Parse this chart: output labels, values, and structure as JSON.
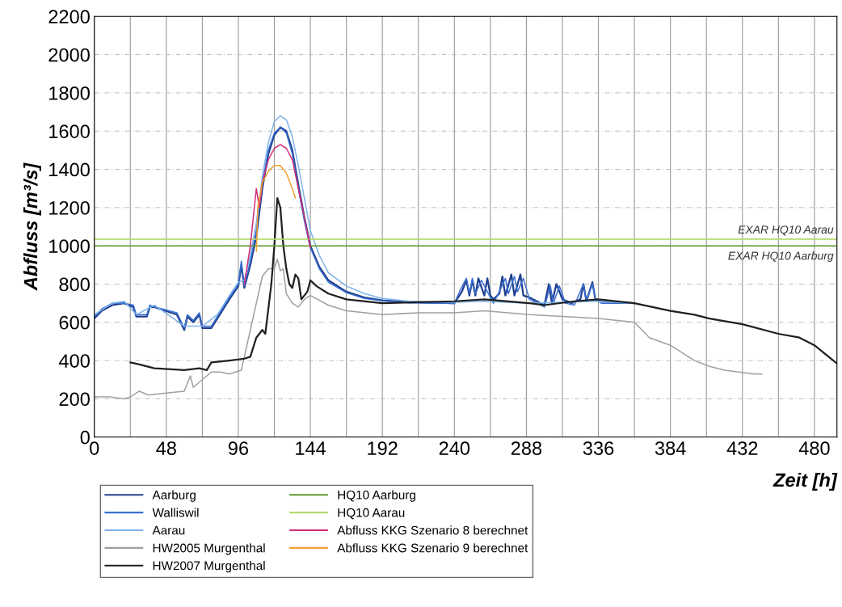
{
  "chart_data": {
    "type": "line",
    "xlabel": "Zeit [h]",
    "ylabel": "Abfluss [m³/s]",
    "xlim": [
      0,
      495
    ],
    "ylim": [
      0,
      2200
    ],
    "xticks": [
      0,
      {
        "value": 24,
        "label": null
      },
      48,
      {
        "value": 72,
        "label": null
      },
      96,
      {
        "value": 120,
        "label": null
      },
      144,
      {
        "value": 168,
        "label": null
      },
      192,
      {
        "value": 216,
        "label": null
      },
      240,
      {
        "value": 264,
        "label": null
      },
      288,
      {
        "value": 312,
        "label": null
      },
      336,
      {
        "value": 360,
        "label": null
      },
      384,
      {
        "value": 408,
        "label": null
      },
      432,
      {
        "value": 456,
        "label": null
      },
      480
    ],
    "yticks": [
      0,
      200,
      400,
      600,
      800,
      1000,
      1200,
      1400,
      1600,
      1800,
      2000,
      2200
    ],
    "grid": true,
    "legend": "bottom left",
    "marker": "none",
    "line_style": "solid",
    "annotations": [
      {
        "text": "EXAR HQ10 Aarau",
        "x": 495,
        "y": 1035
      },
      {
        "text": "EXAR HQ10 Aarburg",
        "x": 495,
        "y": 1000
      }
    ],
    "series": [
      {
        "name": "Aarburg",
        "color": "#1f3f8f",
        "x": [
          0,
          5,
          12,
          20,
          26,
          28,
          35,
          37,
          40,
          55,
          60,
          62,
          66,
          70,
          72,
          78,
          82,
          90,
          96,
          98,
          100,
          104,
          108,
          112,
          116,
          120,
          124,
          128,
          132,
          136,
          140,
          144,
          150,
          156,
          168,
          180,
          192,
          210,
          240,
          245,
          248,
          250,
          252,
          254,
          256,
          260,
          262,
          264,
          266,
          270,
          272,
          274,
          278,
          280,
          284,
          286,
          290,
          300,
          303,
          305,
          308,
          312,
          318,
          324,
          326,
          328,
          332,
          334,
          340,
          360
        ],
        "values": [
          620,
          660,
          690,
          700,
          680,
          630,
          630,
          680,
          680,
          640,
          560,
          630,
          600,
          640,
          570,
          570,
          620,
          720,
          790,
          900,
          780,
          900,
          1050,
          1300,
          1480,
          1580,
          1620,
          1600,
          1500,
          1320,
          1150,
          1000,
          890,
          820,
          760,
          730,
          715,
          705,
          700,
          760,
          820,
          740,
          820,
          740,
          830,
          740,
          830,
          740,
          720,
          750,
          840,
          740,
          850,
          740,
          850,
          740,
          730,
          690,
          800,
          700,
          800,
          720,
          700,
          720,
          800,
          710,
          810,
          720,
          710,
          700
        ]
      },
      {
        "name": "Walliswil",
        "color": "#3a6fd0",
        "x": [
          0,
          5,
          12,
          20,
          26,
          28,
          35,
          37,
          40,
          55,
          60,
          62,
          66,
          70,
          72,
          78,
          82,
          90,
          96,
          98,
          100,
          104,
          108,
          112,
          116,
          120,
          124,
          128,
          132,
          136,
          140,
          144,
          150,
          156,
          168,
          180,
          192,
          210,
          240,
          244,
          248,
          250,
          252,
          254,
          258,
          262,
          266,
          270,
          274,
          276,
          280,
          282,
          286,
          290,
          300,
          304,
          306,
          310,
          314,
          320,
          326,
          328,
          332,
          334,
          338,
          360
        ],
        "values": [
          630,
          670,
          700,
          700,
          690,
          640,
          640,
          690,
          680,
          650,
          570,
          640,
          610,
          650,
          580,
          580,
          630,
          730,
          800,
          920,
          790,
          920,
          1080,
          1330,
          1500,
          1590,
          1620,
          1590,
          1480,
          1300,
          1130,
          990,
          880,
          810,
          755,
          725,
          712,
          702,
          698,
          770,
          830,
          750,
          830,
          750,
          820,
          760,
          700,
          760,
          830,
          750,
          840,
          760,
          830,
          720,
          680,
          790,
          700,
          790,
          700,
          690,
          800,
          710,
          800,
          720,
          700,
          700
        ]
      },
      {
        "name": "Aarau",
        "color": "#7fb3e8",
        "x": [
          0,
          12,
          20,
          28,
          40,
          60,
          72,
          82,
          90,
          96,
          100,
          104,
          108,
          112,
          116,
          120,
          124,
          128,
          132,
          136,
          140,
          144,
          150,
          156,
          168,
          180,
          192,
          210,
          240,
          260,
          290,
          336,
          360
        ],
        "values": [
          640,
          700,
          710,
          640,
          690,
          580,
          580,
          640,
          740,
          810,
          820,
          950,
          1120,
          1360,
          1540,
          1650,
          1680,
          1660,
          1570,
          1420,
          1250,
          1080,
          950,
          860,
          790,
          750,
          725,
          710,
          705,
          710,
          700,
          710,
          700
        ]
      },
      {
        "name": "HW2005 Murgenthal",
        "color": "#a0a0a0",
        "x": [
          0,
          10,
          20,
          24,
          30,
          36,
          48,
          60,
          64,
          66,
          72,
          78,
          84,
          90,
          98,
          104,
          108,
          112,
          116,
          120,
          122,
          124,
          126,
          128,
          132,
          136,
          140,
          144,
          156,
          168,
          192,
          216,
          240,
          260,
          290,
          336,
          360,
          370,
          384,
          400,
          410,
          420,
          440,
          445
        ],
        "values": [
          210,
          210,
          200,
          210,
          240,
          220,
          230,
          240,
          320,
          260,
          300,
          340,
          340,
          330,
          350,
          560,
          700,
          840,
          880,
          880,
          930,
          870,
          880,
          750,
          700,
          680,
          720,
          740,
          690,
          660,
          640,
          650,
          650,
          660,
          640,
          620,
          600,
          520,
          480,
          400,
          370,
          350,
          330,
          330
        ]
      },
      {
        "name": "HW2007 Murgenthal",
        "color": "#202020",
        "x": [
          24,
          30,
          40,
          60,
          70,
          75,
          78,
          90,
          100,
          104,
          108,
          112,
          114,
          118,
          120,
          122,
          124,
          126,
          128,
          130,
          132,
          134,
          136,
          138,
          142,
          144,
          148,
          156,
          168,
          192,
          240,
          260,
          290,
          300,
          320,
          336,
          360,
          384,
          400,
          410,
          432,
          456,
          470,
          480,
          495
        ],
        "values": [
          390,
          380,
          360,
          350,
          360,
          350,
          390,
          400,
          410,
          420,
          520,
          560,
          540,
          800,
          1000,
          1250,
          1200,
          1000,
          880,
          800,
          780,
          850,
          830,
          720,
          760,
          820,
          790,
          750,
          720,
          700,
          710,
          720,
          700,
          690,
          710,
          720,
          700,
          660,
          640,
          620,
          590,
          540,
          520,
          480,
          385
        ]
      },
      {
        "name": "HQ10 Aarburg",
        "color": "#5a9a2a",
        "x": [
          0,
          495
        ],
        "values": [
          1000,
          1000
        ]
      },
      {
        "name": "HQ10 Aarau",
        "color": "#b5d96a",
        "x": [
          0,
          495
        ],
        "values": [
          1035,
          1035
        ]
      },
      {
        "name": "Abfluss KKG Szenario 8 berechnet",
        "color": "#d0307a",
        "x": [
          100,
          104,
          108,
          110,
          112,
          116,
          120,
          124,
          128,
          132,
          136,
          140,
          144
        ],
        "values": [
          800,
          1000,
          1300,
          1200,
          1330,
          1450,
          1510,
          1530,
          1510,
          1450,
          1300,
          1150,
          990
        ]
      },
      {
        "name": "Abfluss KKG Szenario 9 berechnet",
        "color": "#f0a030",
        "x": [
          108,
          109,
          112,
          116,
          120,
          124,
          128,
          132,
          134
        ],
        "values": [
          970,
          1200,
          1330,
          1390,
          1420,
          1420,
          1380,
          1300,
          1250
        ]
      }
    ]
  }
}
